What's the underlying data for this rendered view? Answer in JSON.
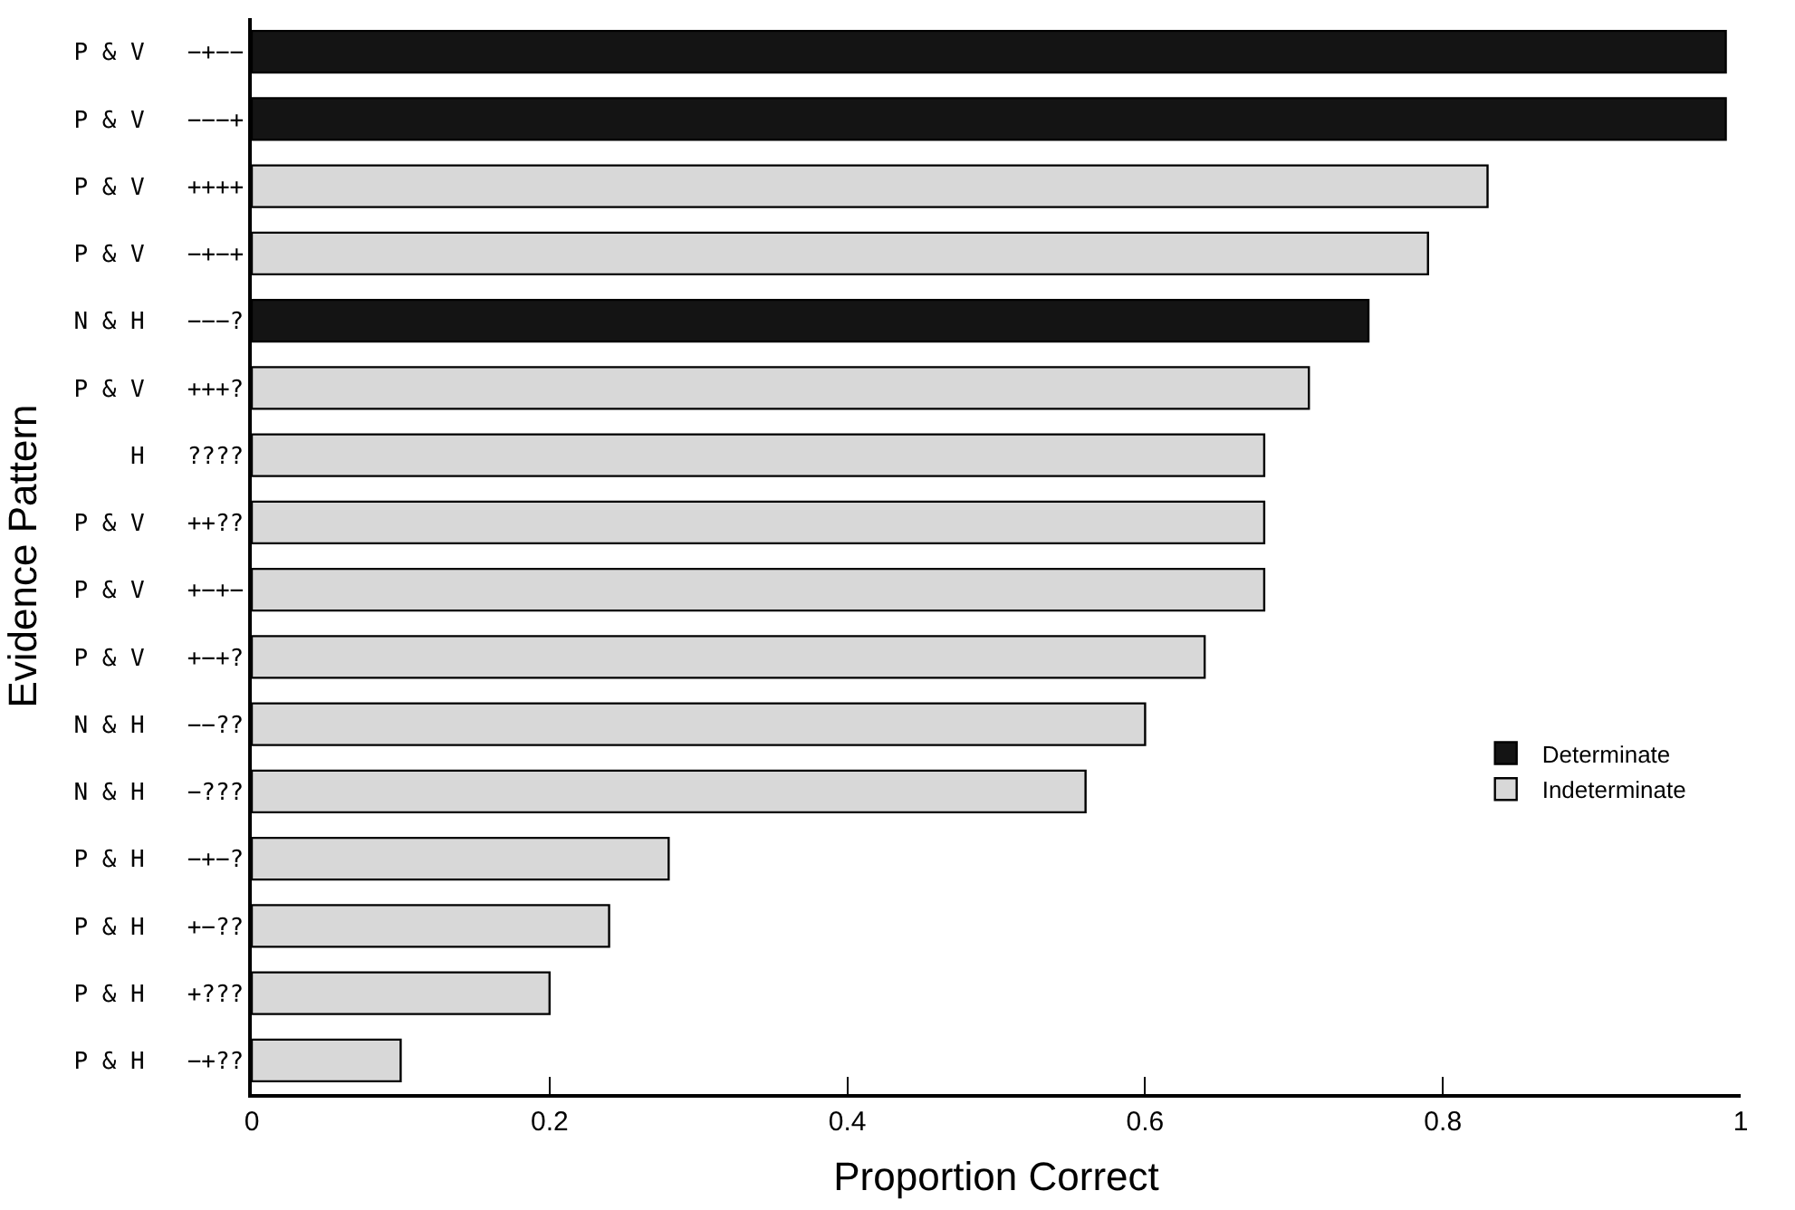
{
  "chart_data": {
    "type": "bar",
    "orientation": "horizontal",
    "xlabel": "Proportion Correct",
    "ylabel": "Evidence Pattern",
    "categories": [
      "P & V   −+−−",
      "P & V   −−−+",
      "P & V   ++++",
      "P & V   −+−+",
      "N & H   −−−?",
      "P & V   +++?",
      "H   ????",
      "P & V   ++??",
      "P & V   +−+−",
      "P & V   +−+?",
      "N & H   −−??",
      "N & H   −???",
      "P & H   −+−?",
      "P & H   +−??",
      "P & H   +???",
      "P & H   −+??"
    ],
    "series": [
      {
        "name": "Determinate",
        "color": "#141414",
        "values": [
          0.99,
          0.99,
          null,
          null,
          0.75,
          null,
          null,
          null,
          null,
          null,
          null,
          null,
          null,
          null,
          null,
          null
        ]
      },
      {
        "name": "Indeterminate",
        "color": "#d8d8d8",
        "values": [
          null,
          null,
          0.83,
          0.79,
          null,
          0.71,
          0.68,
          0.68,
          0.68,
          0.64,
          0.6,
          0.56,
          0.28,
          0.24,
          0.2,
          0.1
        ]
      }
    ],
    "xlim": [
      0,
      1
    ],
    "xticks": [
      0,
      0.2,
      0.4,
      0.6,
      0.8,
      1
    ],
    "legend": "bottom right"
  }
}
